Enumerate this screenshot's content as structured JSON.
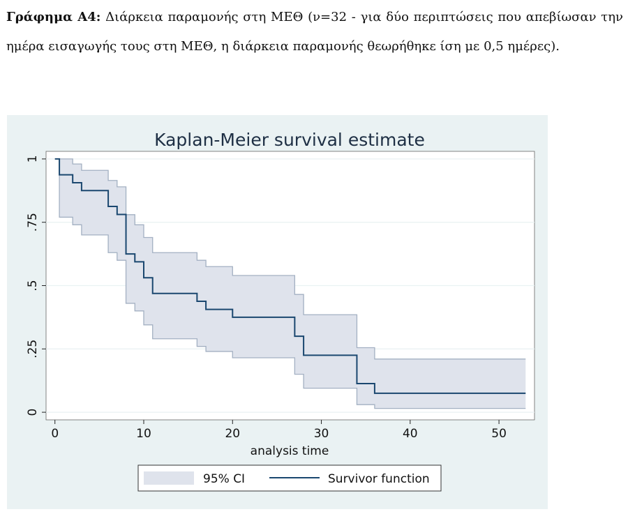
{
  "caption": {
    "label": "Γράφημα Α4:",
    "text": "Διάρκεια παραμονής στη ΜΕΘ (ν=32 - για δύο περιπτώσεις που απεβίωσαν την ημέρα εισαγωγής τους στη ΜΕΘ, η διάρκεια παραμονής θεωρήθηκε ίση με 0,5 ημέρες)."
  },
  "colors": {
    "panel_bg": "#eaf2f3",
    "plot_bg": "#ffffff",
    "grid": "#eaf2f3",
    "ci_fill": "#dfe3ec",
    "ci_line": "#a3b0c2",
    "survivor_line": "#1a476f"
  },
  "chart_data": {
    "type": "line",
    "title": "Kaplan-Meier survival estimate",
    "xlabel": "analysis time",
    "ylabel": "",
    "xlim": [
      -1,
      54
    ],
    "ylim": [
      -0.03,
      1.03
    ],
    "x_ticks": [
      0,
      10,
      20,
      30,
      40,
      50
    ],
    "x_tick_labels": [
      "0",
      "10",
      "20",
      "30",
      "40",
      "50"
    ],
    "y_ticks": [
      0,
      0.25,
      0.5,
      0.75,
      1
    ],
    "y_tick_labels": [
      "0",
      ".25",
      ".5",
      ".75",
      "1"
    ],
    "grid": true,
    "legend": {
      "position": "bottom",
      "entries": [
        "95% CI",
        "Survivor function"
      ]
    },
    "series": [
      {
        "name": "Survivor function",
        "kind": "step",
        "x": [
          0,
          0.5,
          2,
          3,
          6,
          7,
          8,
          9,
          10,
          11,
          16,
          17,
          20,
          27,
          28,
          34,
          36,
          53
        ],
        "y": [
          1,
          0.9375,
          0.906,
          0.875,
          0.8125,
          0.781,
          0.625,
          0.594,
          0.531,
          0.469,
          0.438,
          0.406,
          0.375,
          0.3,
          0.225,
          0.113,
          0.075,
          0.075
        ]
      },
      {
        "name": "95% CI",
        "kind": "band",
        "x": [
          0,
          0.5,
          2,
          3,
          6,
          7,
          8,
          9,
          10,
          11,
          16,
          17,
          20,
          27,
          28,
          34,
          36,
          53
        ],
        "upper": [
          1,
          1,
          0.98,
          0.955,
          0.915,
          0.89,
          0.78,
          0.74,
          0.69,
          0.63,
          0.6,
          0.575,
          0.54,
          0.465,
          0.385,
          0.255,
          0.21,
          0.21
        ],
        "lower": [
          1,
          0.77,
          0.74,
          0.7,
          0.63,
          0.6,
          0.43,
          0.4,
          0.345,
          0.29,
          0.26,
          0.24,
          0.215,
          0.15,
          0.095,
          0.03,
          0.015,
          0.015
        ]
      }
    ]
  }
}
